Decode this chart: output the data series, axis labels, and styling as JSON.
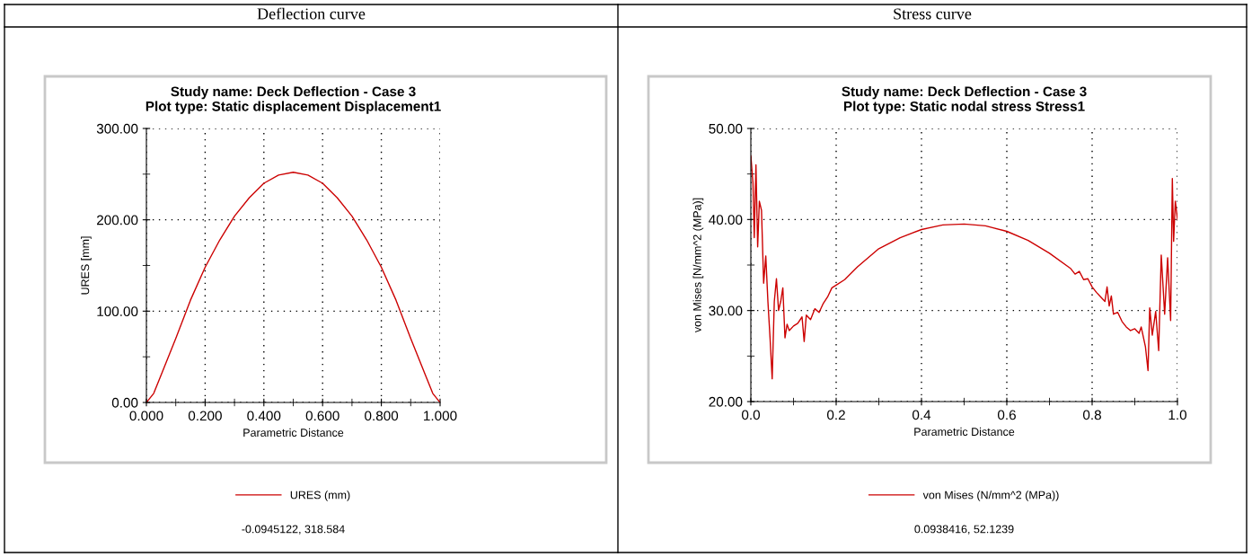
{
  "chart_data": [
    {
      "type": "line",
      "title": "Study name: Deck Deflection - Case 3\nPlot type: Static displacement Displacement1",
      "xlabel": "Parametric Distance",
      "ylabel": "URES [mm]",
      "annotations": [
        "Deflection curve",
        "-0.0945122, 318.584"
      ],
      "x": [
        0,
        0.025,
        0.05,
        0.1,
        0.15,
        0.2,
        0.25,
        0.3,
        0.35,
        0.4,
        0.45,
        0.5,
        0.55,
        0.6,
        0.65,
        0.7,
        0.75,
        0.8,
        0.85,
        0.9,
        0.95,
        0.975,
        1.0
      ],
      "series": [
        {
          "name": "URES (mm)",
          "color": "#cc0000",
          "values": [
            0,
            10,
            30,
            70,
            112,
            148,
            178,
            204,
            224,
            240,
            249,
            252,
            249,
            240,
            224,
            204,
            178,
            148,
            112,
            70,
            30,
            10,
            0
          ]
        }
      ],
      "xlim": [
        0,
        1
      ],
      "ylim": [
        0,
        300
      ],
      "xticks": [
        {
          "value": 0,
          "label": "0.000"
        },
        {
          "value": 0.1,
          "label": null
        },
        {
          "value": 0.2,
          "label": "0.200"
        },
        {
          "value": 0.3,
          "label": null
        },
        {
          "value": 0.4,
          "label": "0.400"
        },
        {
          "value": 0.5,
          "label": null
        },
        {
          "value": 0.6,
          "label": "0.600"
        },
        {
          "value": 0.7,
          "label": null
        },
        {
          "value": 0.8,
          "label": "0.800"
        },
        {
          "value": 0.9,
          "label": null
        },
        {
          "value": 1.0,
          "label": "1.000"
        }
      ],
      "yticks": [
        {
          "value": 0,
          "label": "0.00"
        },
        {
          "value": 50,
          "label": null
        },
        {
          "value": 100,
          "label": "100.00"
        },
        {
          "value": 150,
          "label": null
        },
        {
          "value": 200,
          "label": "200.00"
        },
        {
          "value": 250,
          "label": null
        },
        {
          "value": 300,
          "label": "300.00"
        }
      ],
      "grid": true,
      "legend": "bottom"
    },
    {
      "type": "line",
      "title": "Study name: Deck Deflection - Case 3\nPlot type: Static nodal stress Stress1",
      "xlabel": "Parametric Distance",
      "ylabel": "von Mises [N/mm^2 (MPa)]",
      "annotations": [
        "Stress curve",
        "0.0938416, 52.1239"
      ],
      "x": [
        0,
        0.005,
        0.008,
        0.012,
        0.016,
        0.02,
        0.025,
        0.03,
        0.035,
        0.04,
        0.045,
        0.05,
        0.055,
        0.06,
        0.065,
        0.07,
        0.075,
        0.08,
        0.085,
        0.09,
        0.1,
        0.11,
        0.12,
        0.125,
        0.13,
        0.14,
        0.15,
        0.16,
        0.17,
        0.18,
        0.19,
        0.2,
        0.22,
        0.25,
        0.3,
        0.35,
        0.4,
        0.45,
        0.5,
        0.55,
        0.6,
        0.65,
        0.7,
        0.75,
        0.76,
        0.77,
        0.78,
        0.79,
        0.8,
        0.81,
        0.82,
        0.83,
        0.835,
        0.84,
        0.845,
        0.85,
        0.86,
        0.87,
        0.88,
        0.89,
        0.9,
        0.91,
        0.915,
        0.925,
        0.931,
        0.935,
        0.941,
        0.949,
        0.956,
        0.962,
        0.97,
        0.977,
        0.984,
        0.988,
        0.991,
        0.995,
        1.0
      ],
      "series": [
        {
          "name": "von Mises (N/mm^2 (MPa))",
          "color": "#cc0000",
          "values": [
            47,
            44,
            38,
            46,
            37,
            42,
            41,
            33,
            36,
            31,
            27,
            22.5,
            31,
            33.5,
            30,
            31,
            32.5,
            27,
            28.5,
            27.8,
            28.3,
            28.6,
            29.3,
            26.6,
            29.5,
            29,
            30.2,
            29.8,
            30.8,
            31.5,
            32.5,
            32.8,
            33.4,
            34.8,
            36.8,
            38,
            38.9,
            39.4,
            39.5,
            39.3,
            38.7,
            37.7,
            36.3,
            34.6,
            34,
            34.3,
            33.4,
            33.5,
            32.6,
            32,
            31.5,
            31,
            32.6,
            30.5,
            31.6,
            29.6,
            29.8,
            28.8,
            28.2,
            27.8,
            28,
            27.5,
            28.2,
            26,
            23.4,
            30.3,
            27.3,
            29.9,
            25.6,
            36.1,
            29.6,
            35.8,
            28.9,
            44.5,
            37.6,
            42,
            40
          ]
        }
      ],
      "xlim": [
        0,
        1
      ],
      "ylim": [
        20,
        50
      ],
      "xticks": [
        {
          "value": 0,
          "label": "0.0"
        },
        {
          "value": 0.1,
          "label": null
        },
        {
          "value": 0.2,
          "label": "0.2"
        },
        {
          "value": 0.3,
          "label": null
        },
        {
          "value": 0.4,
          "label": "0.4"
        },
        {
          "value": 0.5,
          "label": null
        },
        {
          "value": 0.6,
          "label": "0.6"
        },
        {
          "value": 0.7,
          "label": null
        },
        {
          "value": 0.8,
          "label": "0.8"
        },
        {
          "value": 0.9,
          "label": null
        },
        {
          "value": 1.0,
          "label": "1.0"
        }
      ],
      "yticks": [
        {
          "value": 20,
          "label": "20.00"
        },
        {
          "value": 25,
          "label": null
        },
        {
          "value": 30,
          "label": "30.00"
        },
        {
          "value": 35,
          "label": null
        },
        {
          "value": 40,
          "label": "40.00"
        },
        {
          "value": 45,
          "label": null
        },
        {
          "value": 50,
          "label": "50.00"
        }
      ],
      "grid": true,
      "legend": "bottom"
    }
  ]
}
